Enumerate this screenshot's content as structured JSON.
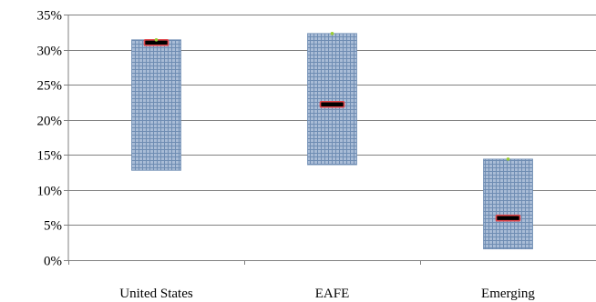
{
  "chart_data": {
    "type": "bar",
    "subtype": "floating-range-with-marker",
    "title": "",
    "xlabel": "",
    "ylabel": "",
    "categories": [
      "United States",
      "EAFE",
      "Emerging"
    ],
    "ranges": [
      {
        "low": 12.8,
        "high": 31.4
      },
      {
        "low": 13.6,
        "high": 32.3
      },
      {
        "low": 1.6,
        "high": 14.4
      }
    ],
    "marker_values": [
      31.0,
      22.2,
      6.0
    ],
    "top_dot_values": [
      31.4,
      32.3,
      14.4
    ],
    "ylim": [
      0,
      35
    ],
    "yticks": [
      0,
      5,
      10,
      15,
      20,
      25,
      30,
      35
    ],
    "ytick_labels": [
      "0%",
      "5%",
      "10%",
      "15%",
      "20%",
      "25%",
      "30%",
      "35%"
    ],
    "grid": true,
    "legend": "none",
    "colors": {
      "range_fill": "#a9bcd6",
      "range_grid": "#6f8db3",
      "marker_fill": "#000000",
      "marker_border": "#e0454a",
      "dot": "#9acd32",
      "gridline": "#808080"
    }
  }
}
